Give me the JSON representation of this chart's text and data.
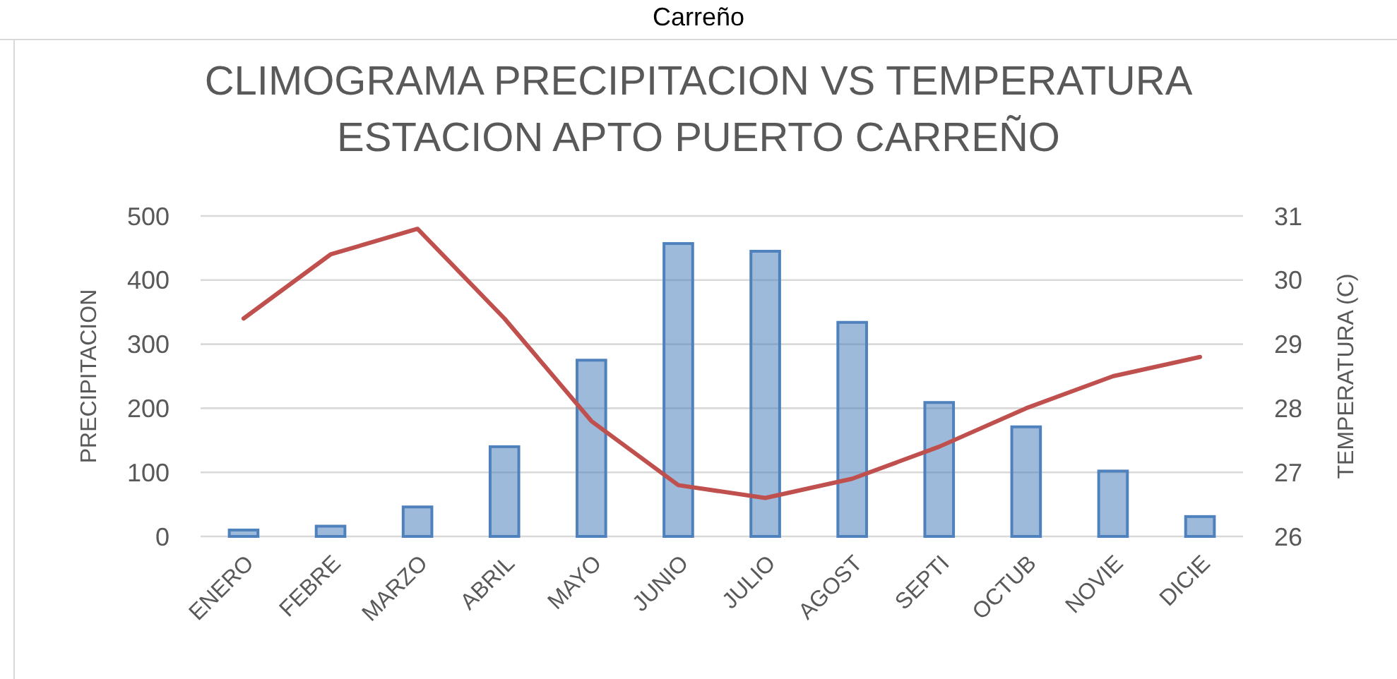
{
  "chart_data": {
    "type": "bar",
    "title": "CLIMOGRAMA PRECIPITACION VS TEMPERATURA",
    "subtitle": "ESTACION APTO PUERTO CARREÑO",
    "annotations": [
      "Carreño"
    ],
    "ylabel": "PRECIPITACION",
    "y2label": "TEMPERATURA (C)",
    "categories": [
      "ENERO",
      "FEBRE",
      "MARZO",
      "ABRIL",
      "MAYO",
      "JUNIO",
      "JULIO",
      "AGOST",
      "SEPTI",
      "OCTUB",
      "NOVIE",
      "DICIE"
    ],
    "series": [
      {
        "color": "#4f81bd",
        "values": [
          10,
          16,
          46,
          140,
          275,
          457,
          445,
          334,
          209,
          171,
          102,
          31
        ]
      },
      {
        "type": "line",
        "axis": "y2",
        "color": "#c0504d",
        "values": [
          29.4,
          30.4,
          30.8,
          29.4,
          27.8,
          26.8,
          26.6,
          26.9,
          27.4,
          28.0,
          28.5,
          28.8
        ]
      }
    ],
    "ylim": [
      0,
      500
    ],
    "yticks": [
      0,
      100,
      200,
      300,
      400,
      500
    ],
    "y2lim": [
      26,
      31
    ],
    "y2ticks": [
      26,
      27,
      28,
      29,
      30,
      31
    ],
    "grid": "y"
  }
}
